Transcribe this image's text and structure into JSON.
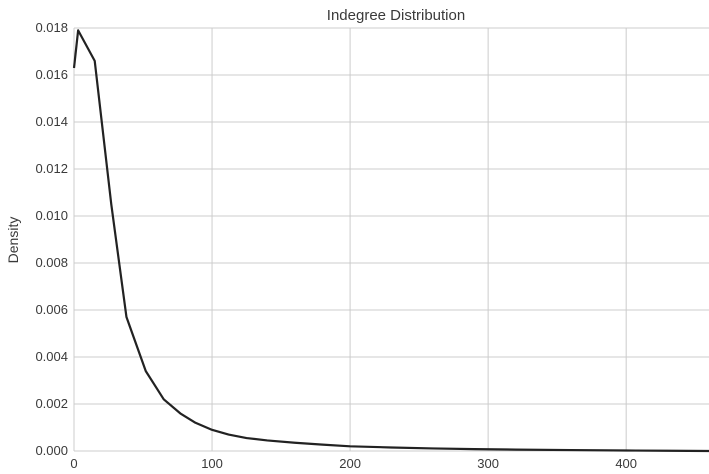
{
  "chart_data": {
    "type": "line",
    "title": "Indegree Distribution",
    "xlabel": "",
    "ylabel": "Density",
    "xlim": [
      0,
      460
    ],
    "ylim": [
      0,
      0.018
    ],
    "x_ticks": [
      0,
      100,
      200,
      300,
      400
    ],
    "x_tick_labels": [
      "0",
      "100",
      "200",
      "300",
      "400"
    ],
    "y_ticks": [
      0,
      0.002,
      0.004,
      0.006,
      0.008,
      0.01,
      0.012,
      0.014,
      0.016,
      0.018
    ],
    "y_tick_labels": [
      "0.000",
      "0.002",
      "0.004",
      "0.006",
      "0.008",
      "0.010",
      "0.012",
      "0.014",
      "0.016",
      "0.018"
    ],
    "grid": true,
    "colors": {
      "line": "#222222",
      "grid": "#cccccc",
      "background": "#ffffff"
    },
    "series": [
      {
        "x": [
          0,
          3,
          15,
          27,
          38,
          52,
          65,
          77,
          88,
          100,
          112,
          125,
          140,
          160,
          180,
          200,
          230,
          260,
          290,
          320,
          360,
          400,
          430,
          460
        ],
        "y": [
          0.0163,
          0.0179,
          0.0166,
          0.0105,
          0.0057,
          0.0034,
          0.0022,
          0.0016,
          0.0012,
          0.0009,
          0.0007,
          0.00055,
          0.00045,
          0.00035,
          0.00027,
          0.0002,
          0.00015,
          0.00011,
          8e-05,
          6e-05,
          4e-05,
          2e-05,
          1e-05,
          0.0
        ]
      }
    ]
  }
}
